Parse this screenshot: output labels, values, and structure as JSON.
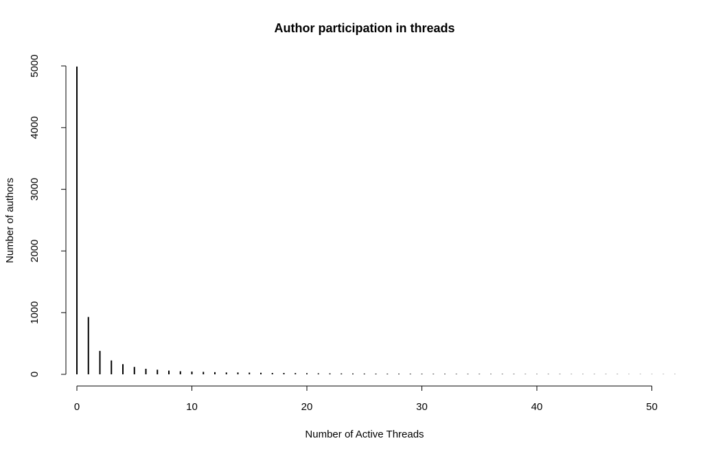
{
  "chart_data": {
    "type": "bar",
    "title": "Author participation in threads",
    "xlabel": "Number of Active Threads",
    "ylabel": "Number of authors",
    "x": [
      0,
      1,
      2,
      3,
      4,
      5,
      6,
      7,
      8,
      9,
      10,
      11,
      12,
      13,
      14,
      15,
      16,
      17,
      18,
      19,
      20,
      21,
      22,
      23,
      24,
      25,
      26,
      27,
      28,
      29,
      30,
      31,
      32,
      33,
      34,
      35,
      36,
      37,
      38,
      39,
      40,
      41,
      42,
      43,
      44,
      45,
      46,
      47,
      48,
      49,
      50,
      51,
      52
    ],
    "values": [
      4990,
      930,
      380,
      225,
      165,
      120,
      90,
      75,
      60,
      50,
      45,
      40,
      35,
      30,
      30,
      28,
      25,
      22,
      22,
      20,
      18,
      16,
      15,
      14,
      13,
      12,
      11,
      10,
      10,
      9,
      9,
      8,
      8,
      7,
      7,
      7,
      6,
      6,
      6,
      5,
      5,
      5,
      5,
      4,
      4,
      4,
      4,
      4,
      3,
      3,
      3,
      3,
      3
    ],
    "xlim": [
      0,
      52
    ],
    "ylim": [
      0,
      5000
    ],
    "xticks": [
      0,
      10,
      20,
      30,
      40,
      50
    ],
    "yticks": [
      0,
      1000,
      2000,
      3000,
      4000,
      5000
    ],
    "grid": false,
    "color": "#000000"
  }
}
